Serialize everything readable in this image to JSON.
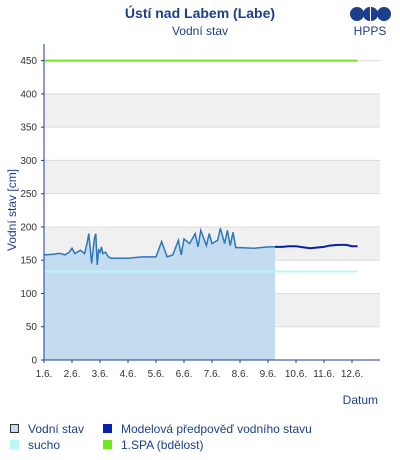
{
  "header": {
    "title": "Ústí nad Labem (Labe)",
    "subtitle": "Vodní stav",
    "logo_text": "HPPS"
  },
  "chart_data": {
    "type": "line",
    "title": "Ústí nad Labem (Labe)",
    "subtitle": "Vodní stav",
    "xlabel": "Datum",
    "ylabel": "Vodní stav [cm]",
    "ylim": [
      0,
      475
    ],
    "yticks": [
      0,
      50,
      100,
      150,
      200,
      250,
      300,
      350,
      400,
      450
    ],
    "xlim": [
      1,
      13
    ],
    "xtick_labels": [
      "1.6.",
      "2.6.",
      "3.6.",
      "4.6.",
      "5.6.",
      "6.6.",
      "7.6.",
      "8.6.",
      "9.6.",
      "10.6.",
      "11.6.",
      "12.6."
    ],
    "grid": "horizontal bands",
    "series": [
      {
        "name": "Vodní stav",
        "color": "#2f78b6",
        "fill": "#c4dcf0",
        "x": [
          1.0,
          1.35,
          1.5,
          1.6,
          1.75,
          1.9,
          2.0,
          2.1,
          2.3,
          2.45,
          2.55,
          2.6,
          2.7,
          2.8,
          2.85,
          2.9,
          2.95,
          3.0,
          3.05,
          3.1,
          3.2,
          3.3,
          3.4,
          3.5,
          4.0,
          4.5,
          5.0,
          5.2,
          5.4,
          5.6,
          5.8,
          5.9,
          6.0,
          6.2,
          6.4,
          6.5,
          6.6,
          6.8,
          6.9,
          7.0,
          7.2,
          7.3,
          7.45,
          7.55,
          7.65,
          7.75,
          7.85,
          8.0,
          8.5,
          9.0,
          9.25
        ],
        "y": [
          158,
          159,
          160,
          160,
          158,
          162,
          168,
          160,
          165,
          160,
          178,
          190,
          145,
          183,
          190,
          143,
          165,
          162,
          170,
          160,
          162,
          155,
          153,
          153,
          153,
          155,
          155,
          178,
          155,
          158,
          180,
          158,
          182,
          175,
          190,
          170,
          195,
          172,
          190,
          175,
          180,
          198,
          175,
          195,
          172,
          192,
          169,
          169,
          168,
          170,
          170
        ]
      },
      {
        "name": "Modelová předpověď vodního stavu",
        "color": "#0a1fa8",
        "x": [
          9.25,
          9.5,
          9.75,
          10.0,
          10.5,
          11.0,
          11.2,
          11.5,
          11.8,
          12.0,
          12.2
        ],
        "y": [
          170,
          170,
          171,
          171,
          168,
          170,
          172,
          173,
          173,
          171,
          171
        ]
      },
      {
        "name": "sucho",
        "color": "#b7f8f6",
        "x": [
          1.0,
          12.2
        ],
        "y": [
          133,
          133
        ]
      },
      {
        "name": "1.SPA (bdělost)",
        "color": "#6fe81e",
        "x": [
          1.0,
          12.2
        ],
        "y": [
          450,
          450
        ]
      }
    ]
  },
  "legend": [
    {
      "label": "Vodní stav",
      "swatch": "#c4dcf0",
      "border": "#333333"
    },
    {
      "label": "Modelová předpověď vodního stavu",
      "swatch": "#0a1fa8",
      "border": "#0a1fa8"
    },
    {
      "label": "sucho",
      "swatch": "#b7f8f6",
      "border": "#b7f8f6"
    },
    {
      "label": "1.SPA (bdělost)",
      "swatch": "#6fe81e",
      "border": "#6fe81e"
    }
  ]
}
